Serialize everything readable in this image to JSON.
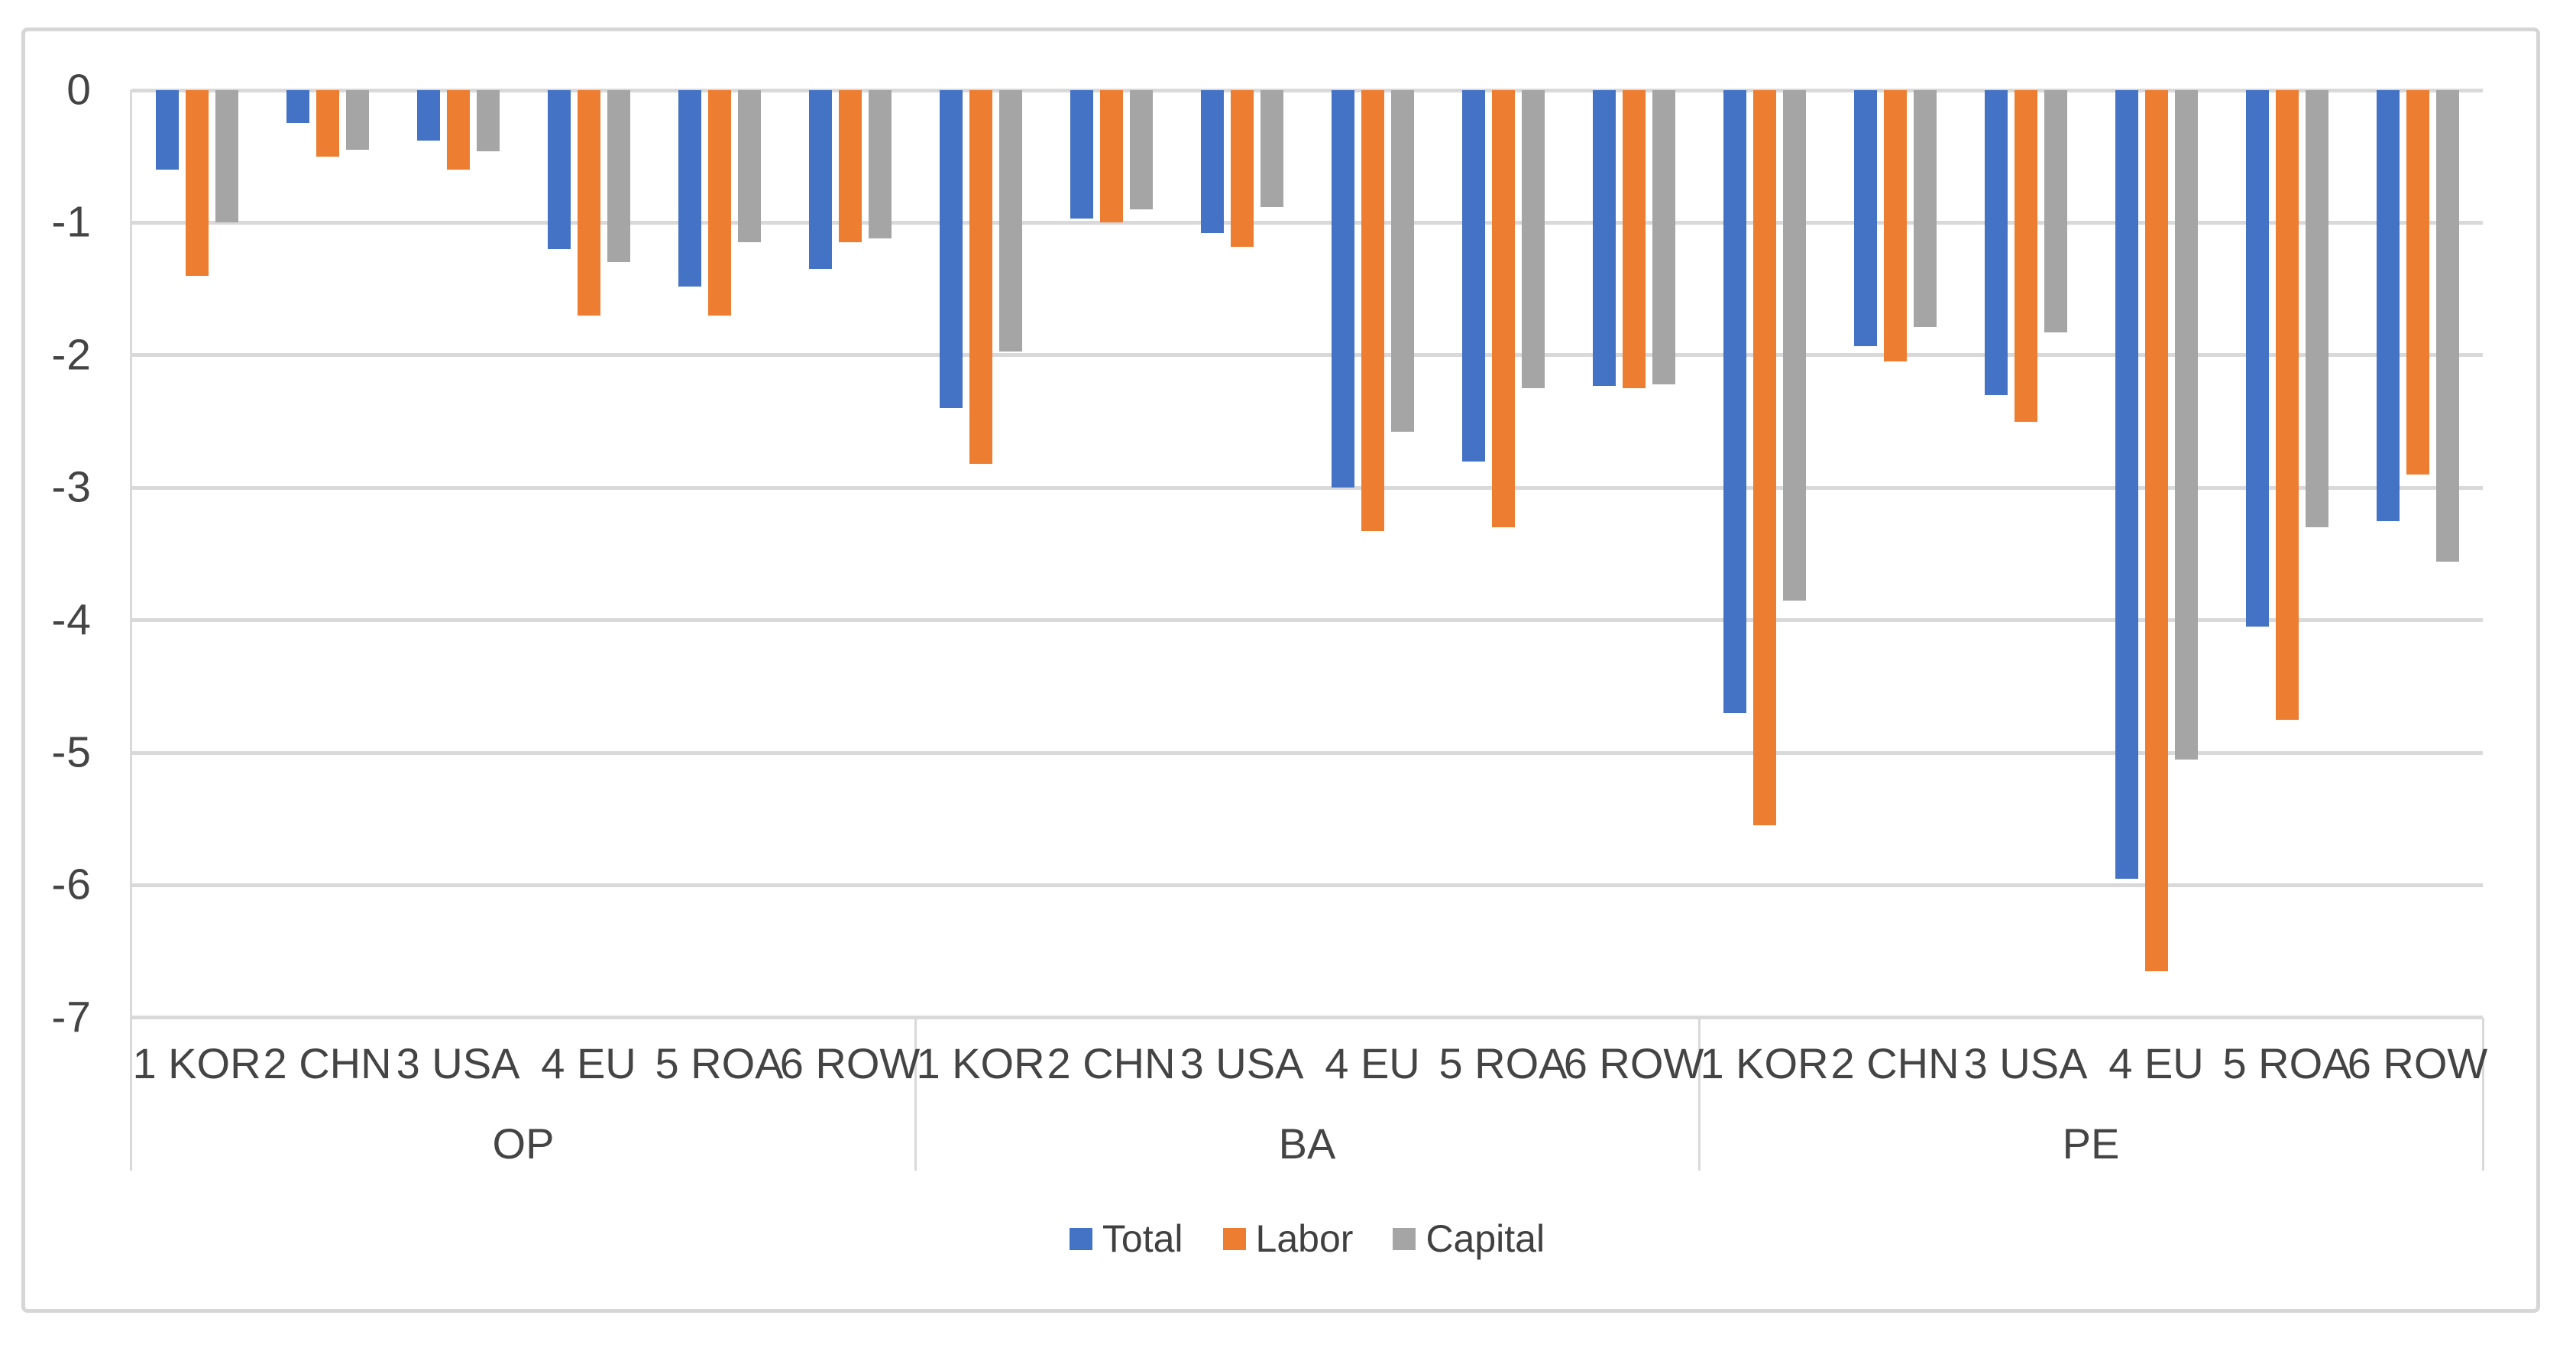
{
  "chart_data": {
    "type": "bar",
    "title": "",
    "xlabel": "",
    "ylabel": "",
    "ylim": [
      -7,
      0
    ],
    "grid": true,
    "gridline_color": "#d9d9d9",
    "axis_text_color": "#444444",
    "legend_position": "bottom",
    "ytick_labels": [
      "0",
      "-1",
      "-2",
      "-3",
      "-4",
      "-5",
      "-6",
      "-7"
    ],
    "yticks": [
      0,
      -1,
      -2,
      -3,
      -4,
      -5,
      -6,
      -7
    ],
    "panels": [
      "OP",
      "BA",
      "PE"
    ],
    "categories": [
      "1 KOR",
      "2 CHN",
      "3 USA",
      "4 EU",
      "5 ROA",
      "6 ROW"
    ],
    "series": [
      {
        "name": "Total",
        "color": "#4472C4",
        "values": [
          [
            -0.6,
            -0.25,
            -0.38,
            -1.2,
            -1.48,
            -1.35
          ],
          [
            -2.4,
            -0.97,
            -1.08,
            -3.0,
            -2.8,
            -2.23
          ],
          [
            -4.7,
            -1.93,
            -2.3,
            -5.95,
            -4.05,
            -3.25
          ]
        ]
      },
      {
        "name": "Labor",
        "color": "#ED7D31",
        "values": [
          [
            -1.4,
            -0.5,
            -0.6,
            -1.7,
            -1.7,
            -1.15
          ],
          [
            -2.82,
            -1.0,
            -1.18,
            -3.33,
            -3.3,
            -2.25
          ],
          [
            -5.55,
            -2.05,
            -2.5,
            -6.65,
            -4.75,
            -2.9
          ]
        ]
      },
      {
        "name": "Capital",
        "color": "#A5A5A5",
        "values": [
          [
            -1.0,
            -0.45,
            -0.46,
            -1.3,
            -1.15,
            -1.12
          ],
          [
            -1.97,
            -0.9,
            -0.88,
            -2.58,
            -2.25,
            -2.22
          ],
          [
            -3.85,
            -1.79,
            -1.83,
            -5.05,
            -3.3,
            -3.56
          ]
        ]
      }
    ]
  }
}
